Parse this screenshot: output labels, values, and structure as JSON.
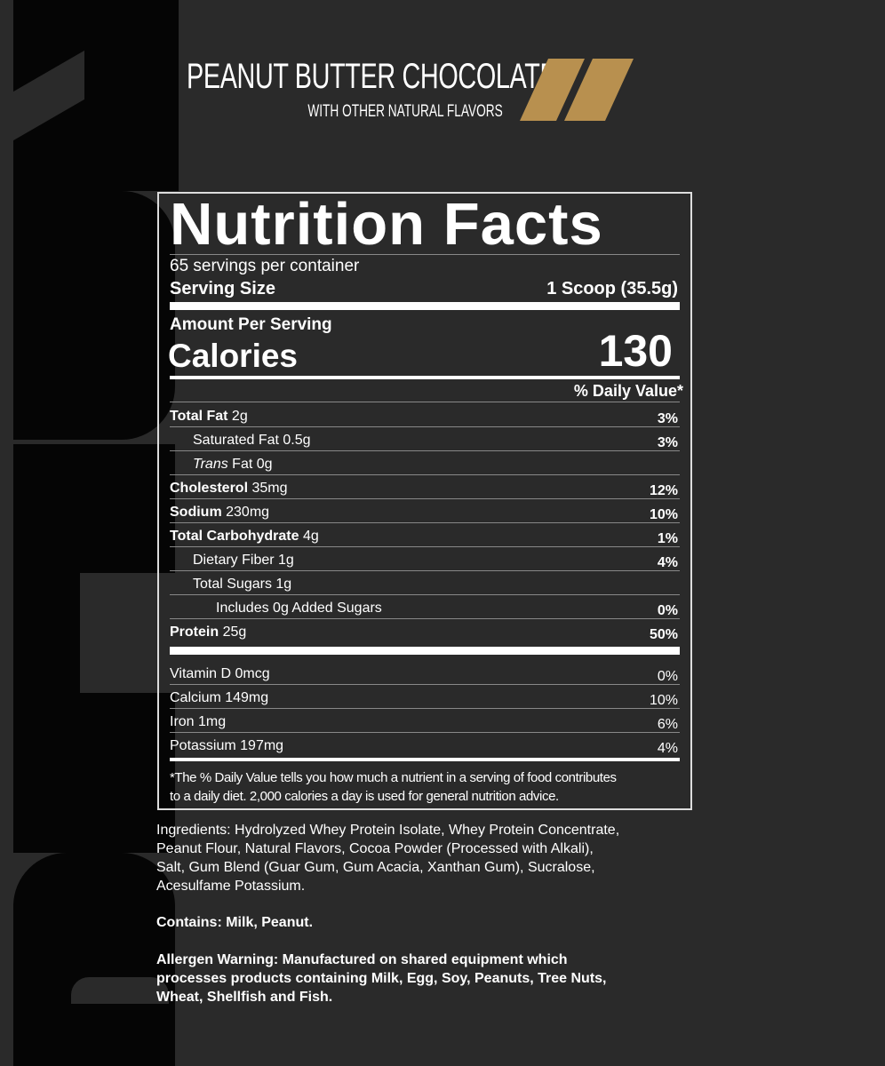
{
  "header": {
    "title": "PEANUT BUTTER CHOCOLATE",
    "subtitle": "WITH OTHER NATURAL FLAVORS",
    "accent_color": "#b8904f"
  },
  "label": {
    "title": "Nutrition Facts",
    "servings": "65 servings per container",
    "serving_size_label": "Serving Size",
    "serving_size_value": "1 Scoop (35.5g)",
    "amount_per_serving": "Amount Per Serving",
    "calories_label": "Calories",
    "calories_value": "130",
    "daily_value_header": "% Daily Value*",
    "nutrients": [
      {
        "bold": "Total Fat",
        "rest": " 2g",
        "dv": "3%"
      },
      {
        "bold": "",
        "rest": "Saturated Fat 0.5g",
        "dv": "3%"
      },
      {
        "bold": "",
        "italic": "Trans",
        "rest": " Fat 0g",
        "dv": ""
      },
      {
        "bold": "Cholesterol",
        "rest": " 35mg",
        "dv": "12%"
      },
      {
        "bold": "Sodium",
        "rest": " 230mg",
        "dv": "10%"
      },
      {
        "bold": "Total Carbohydrate",
        "rest": " 4g",
        "dv": "1%"
      },
      {
        "bold": "",
        "rest": "Dietary Fiber 1g",
        "dv": "4%"
      },
      {
        "bold": "",
        "rest": "Total Sugars 1g",
        "dv": ""
      },
      {
        "bold": "",
        "rest": "Includes 0g Added Sugars",
        "dv": "0%"
      },
      {
        "bold": "Protein",
        "rest": " 25g",
        "dv": "50%"
      }
    ],
    "vitamins": [
      {
        "name": "Vitamin D 0mcg",
        "dv": "0%"
      },
      {
        "name": "Calcium 149mg",
        "dv": "10%"
      },
      {
        "name": "Iron 1mg",
        "dv": "6%"
      },
      {
        "name": "Potassium 197mg",
        "dv": "4%"
      }
    ],
    "footnote_1": "*The % Daily Value tells you how much a nutrient in a serving of food contributes",
    "footnote_2": "to a daily diet. 2,000 calories a day is used for general nutrition advice."
  },
  "ingredients": [
    "Ingredients: Hydrolyzed Whey Protein Isolate, Whey Protein Concentrate,",
    "Peanut Flour, Natural Flavors, Cocoa Powder (Processed with Alkali),",
    "Salt, Gum Blend (Guar Gum, Gum Acacia, Xanthan Gum), Sucralose,",
    "Acesulfame Potassium."
  ],
  "contains": "Contains: Milk, Peanut.",
  "allergen": [
    "Allergen Warning: Manufactured on shared equipment which",
    "processes products containing Milk, Egg, Soy, Peanuts, Tree Nuts,",
    "Wheat, Shellfish and Fish."
  ]
}
